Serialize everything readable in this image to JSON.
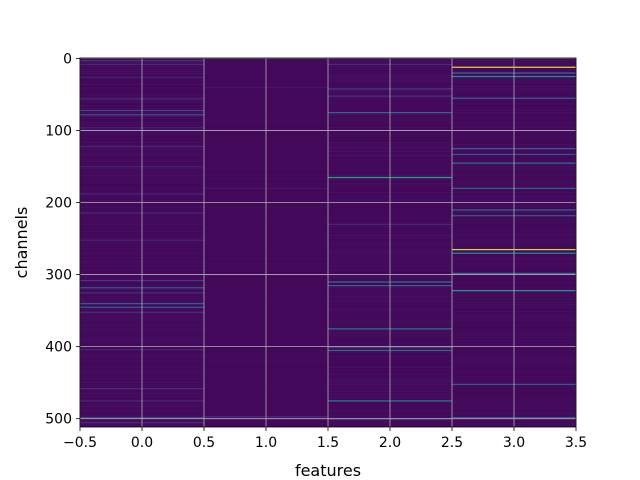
{
  "chart_data": {
    "type": "heatmap",
    "colormap": "viridis",
    "xlabel": "features",
    "ylabel": "channels",
    "xlim": [
      -0.5,
      3.5
    ],
    "ylim": [
      511.5,
      -0.5
    ],
    "y_inverted": true,
    "grid": true,
    "x_ticks": [
      -0.5,
      0.0,
      0.5,
      1.0,
      1.5,
      2.0,
      2.5,
      3.0,
      3.5
    ],
    "x_tick_labels": [
      "−0.5",
      "0.0",
      "0.5",
      "1.0",
      "1.5",
      "2.0",
      "2.5",
      "3.0",
      "3.5"
    ],
    "y_ticks": [
      0,
      100,
      200,
      300,
      400,
      500
    ],
    "y_tick_labels": [
      "0",
      "100",
      "200",
      "300",
      "400",
      "500"
    ],
    "n_channels": 512,
    "features": [
      0,
      1,
      2,
      3
    ],
    "value_range": [
      0,
      1
    ],
    "background_value": 0.02,
    "columns": [
      {
        "feature": 0,
        "highlights": [
          {
            "channel": 3,
            "value": 0.18
          },
          {
            "channel": 8,
            "value": 0.12
          },
          {
            "channel": 26,
            "value": 0.1
          },
          {
            "channel": 56,
            "value": 0.12
          },
          {
            "channel": 72,
            "value": 0.22
          },
          {
            "channel": 78,
            "value": 0.28
          },
          {
            "channel": 96,
            "value": 0.1
          },
          {
            "channel": 122,
            "value": 0.12
          },
          {
            "channel": 150,
            "value": 0.1
          },
          {
            "channel": 188,
            "value": 0.12
          },
          {
            "channel": 214,
            "value": 0.1
          },
          {
            "channel": 252,
            "value": 0.12
          },
          {
            "channel": 308,
            "value": 0.18
          },
          {
            "channel": 318,
            "value": 0.3
          },
          {
            "channel": 325,
            "value": 0.14
          },
          {
            "channel": 340,
            "value": 0.3
          },
          {
            "channel": 345,
            "value": 0.34
          },
          {
            "channel": 352,
            "value": 0.14
          },
          {
            "channel": 404,
            "value": 0.12
          },
          {
            "channel": 458,
            "value": 0.14
          },
          {
            "channel": 475,
            "value": 0.12
          },
          {
            "channel": 498,
            "value": 0.22
          },
          {
            "channel": 505,
            "value": 0.12
          }
        ]
      },
      {
        "feature": 1,
        "highlights": [
          {
            "channel": 40,
            "value": 0.06
          },
          {
            "channel": 180,
            "value": 0.06
          },
          {
            "channel": 300,
            "value": 0.06
          },
          {
            "channel": 497,
            "value": 0.14
          }
        ]
      },
      {
        "feature": 2,
        "highlights": [
          {
            "channel": 8,
            "value": 0.14
          },
          {
            "channel": 42,
            "value": 0.2
          },
          {
            "channel": 52,
            "value": 0.16
          },
          {
            "channel": 75,
            "value": 0.35
          },
          {
            "channel": 165,
            "value": 0.6
          },
          {
            "channel": 230,
            "value": 0.12
          },
          {
            "channel": 310,
            "value": 0.4
          },
          {
            "channel": 315,
            "value": 0.35
          },
          {
            "channel": 375,
            "value": 0.4
          },
          {
            "channel": 400,
            "value": 0.45
          },
          {
            "channel": 405,
            "value": 0.35
          },
          {
            "channel": 475,
            "value": 0.45
          },
          {
            "channel": 500,
            "value": 0.2
          }
        ]
      },
      {
        "feature": 3,
        "highlights": [
          {
            "channel": 12,
            "value": 0.97
          },
          {
            "channel": 20,
            "value": 0.4
          },
          {
            "channel": 25,
            "value": 0.5
          },
          {
            "channel": 55,
            "value": 0.3
          },
          {
            "channel": 125,
            "value": 0.35
          },
          {
            "channel": 133,
            "value": 0.25
          },
          {
            "channel": 145,
            "value": 0.38
          },
          {
            "channel": 180,
            "value": 0.35
          },
          {
            "channel": 210,
            "value": 0.35
          },
          {
            "channel": 218,
            "value": 0.3
          },
          {
            "channel": 265,
            "value": 0.92
          },
          {
            "channel": 270,
            "value": 0.5
          },
          {
            "channel": 298,
            "value": 0.35
          },
          {
            "channel": 322,
            "value": 0.55
          },
          {
            "channel": 452,
            "value": 0.3
          },
          {
            "channel": 498,
            "value": 0.25
          }
        ]
      }
    ]
  }
}
